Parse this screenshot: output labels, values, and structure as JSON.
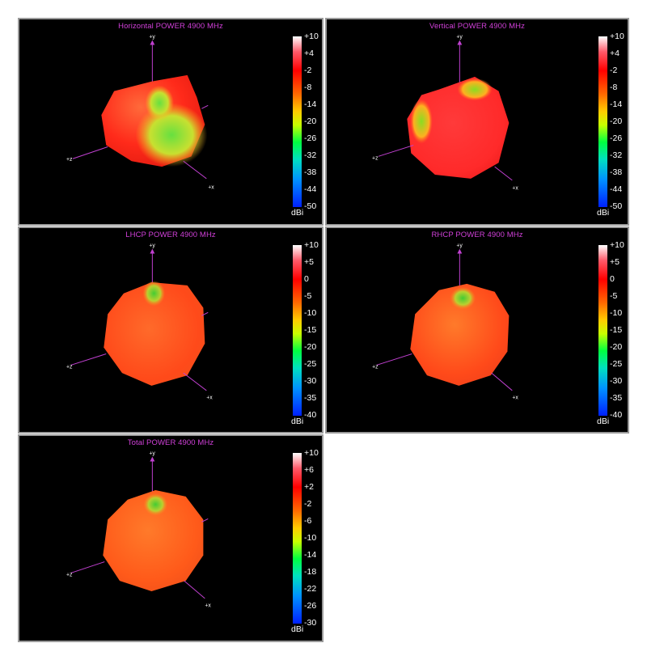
{
  "panels": [
    {
      "title": "Horizontal POWER 4900  MHz",
      "scale_ticks": [
        "+10",
        "+4",
        "-2",
        "-8",
        "-14",
        "-20",
        "-26",
        "-32",
        "-38",
        "-44",
        "-50"
      ],
      "unit": "dBi",
      "axes": {
        "y": "+y",
        "z": "+z",
        "x": "+x"
      }
    },
    {
      "title": "Vertical POWER 4900  MHz",
      "scale_ticks": [
        "+10",
        "+4",
        "-2",
        "-8",
        "-14",
        "-20",
        "-26",
        "-32",
        "-38",
        "-44",
        "-50"
      ],
      "unit": "dBi",
      "axes": {
        "y": "+y",
        "z": "+z",
        "x": "+x"
      }
    },
    {
      "title": "LHCP POWER 4900  MHz",
      "scale_ticks": [
        "+10",
        "+5",
        "0",
        "-5",
        "-10",
        "-15",
        "-20",
        "-25",
        "-30",
        "-35",
        "-40"
      ],
      "unit": "dBi",
      "axes": {
        "y": "+y",
        "z": "+z",
        "x": "+x"
      }
    },
    {
      "title": "RHCP POWER 4900  MHz",
      "scale_ticks": [
        "+10",
        "+5",
        "0",
        "-5",
        "-10",
        "-15",
        "-20",
        "-25",
        "-30",
        "-35",
        "-40"
      ],
      "unit": "dBi",
      "axes": {
        "y": "+y",
        "z": "+z",
        "x": "+x"
      }
    },
    {
      "title": "Total POWER 4900  MHz",
      "scale_ticks": [
        "+10",
        "+6",
        "+2",
        "-2",
        "-6",
        "-10",
        "-14",
        "-18",
        "-22",
        "-26",
        "-30"
      ],
      "unit": "dBi",
      "axes": {
        "y": "+y",
        "z": "+z",
        "x": "+x"
      }
    }
  ],
  "chart_data": [
    {
      "type": "heatmap",
      "title": "Horizontal POWER 4900  MHz",
      "colorbar": {
        "max": 10,
        "min": -50,
        "unit": "dBi"
      },
      "colors": {
        "dominant": "#ff3a2a",
        "secondary": "#66dd33"
      }
    },
    {
      "type": "heatmap",
      "title": "Vertical POWER 4900  MHz",
      "colorbar": {
        "max": 10,
        "min": -50,
        "unit": "dBi"
      },
      "colors": {
        "dominant": "#ff2a2a",
        "secondary": "#88dd22"
      }
    },
    {
      "type": "heatmap",
      "title": "LHCP POWER 4900  MHz",
      "colorbar": {
        "max": 10,
        "min": -40,
        "unit": "dBi"
      },
      "colors": {
        "dominant": "#ff5a1a",
        "secondary": "#55cc33"
      }
    },
    {
      "type": "heatmap",
      "title": "RHCP POWER 4900  MHz",
      "colorbar": {
        "max": 10,
        "min": -40,
        "unit": "dBi"
      },
      "colors": {
        "dominant": "#ff4a1a",
        "secondary": "#55cc33"
      }
    },
    {
      "type": "heatmap",
      "title": "Total POWER 4900  MHz",
      "colorbar": {
        "max": 10,
        "min": -30,
        "unit": "dBi"
      },
      "colors": {
        "dominant": "#ff5a1a",
        "secondary": "#55cc33"
      }
    }
  ]
}
